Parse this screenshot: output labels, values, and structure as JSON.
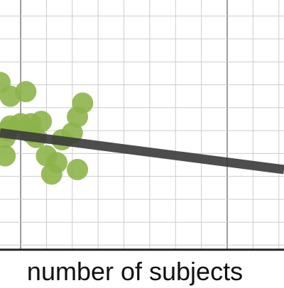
{
  "chart_data": {
    "type": "scatter",
    "title": "",
    "xlabel": "number of subjects",
    "ylabel": "",
    "grid": true,
    "xlim": [
      -0.4,
      5.1
    ],
    "ylim": [
      -0.6,
      4.85
    ],
    "x_tick_step": 1,
    "x_minor_step": 0.5,
    "y_minor_step": 0.5,
    "major_gridline_x": [
      0,
      4
    ],
    "points": [
      {
        "x": -0.4,
        "y": 3.05
      },
      {
        "x": -0.2,
        "y": 2.75
      },
      {
        "x": 0.1,
        "y": 2.85
      },
      {
        "x": -0.2,
        "y": 2.1
      },
      {
        "x": 0.0,
        "y": 2.15
      },
      {
        "x": 0.2,
        "y": 2.15
      },
      {
        "x": 0.4,
        "y": 2.2
      },
      {
        "x": 0.2,
        "y": 1.95
      },
      {
        "x": 0.3,
        "y": 1.85
      },
      {
        "x": -0.3,
        "y": 1.85
      },
      {
        "x": 1.0,
        "y": 1.95
      },
      {
        "x": 0.8,
        "y": 1.8
      },
      {
        "x": 1.1,
        "y": 2.3
      },
      {
        "x": 1.2,
        "y": 2.6
      },
      {
        "x": -0.3,
        "y": 1.45
      },
      {
        "x": 0.5,
        "y": 1.45
      },
      {
        "x": 0.7,
        "y": 1.3
      },
      {
        "x": 1.1,
        "y": 1.15
      },
      {
        "x": 0.6,
        "y": 1.05
      },
      {
        "x": -0.25,
        "y": 2.0
      }
    ],
    "trendline": {
      "x": [
        -0.4,
        5.1
      ],
      "y": [
        1.95,
        1.15
      ]
    },
    "colors": {
      "points": "#8db44a",
      "trendline": "#3a3a3a",
      "grid": "#cccccc",
      "axis": "#222222"
    }
  }
}
